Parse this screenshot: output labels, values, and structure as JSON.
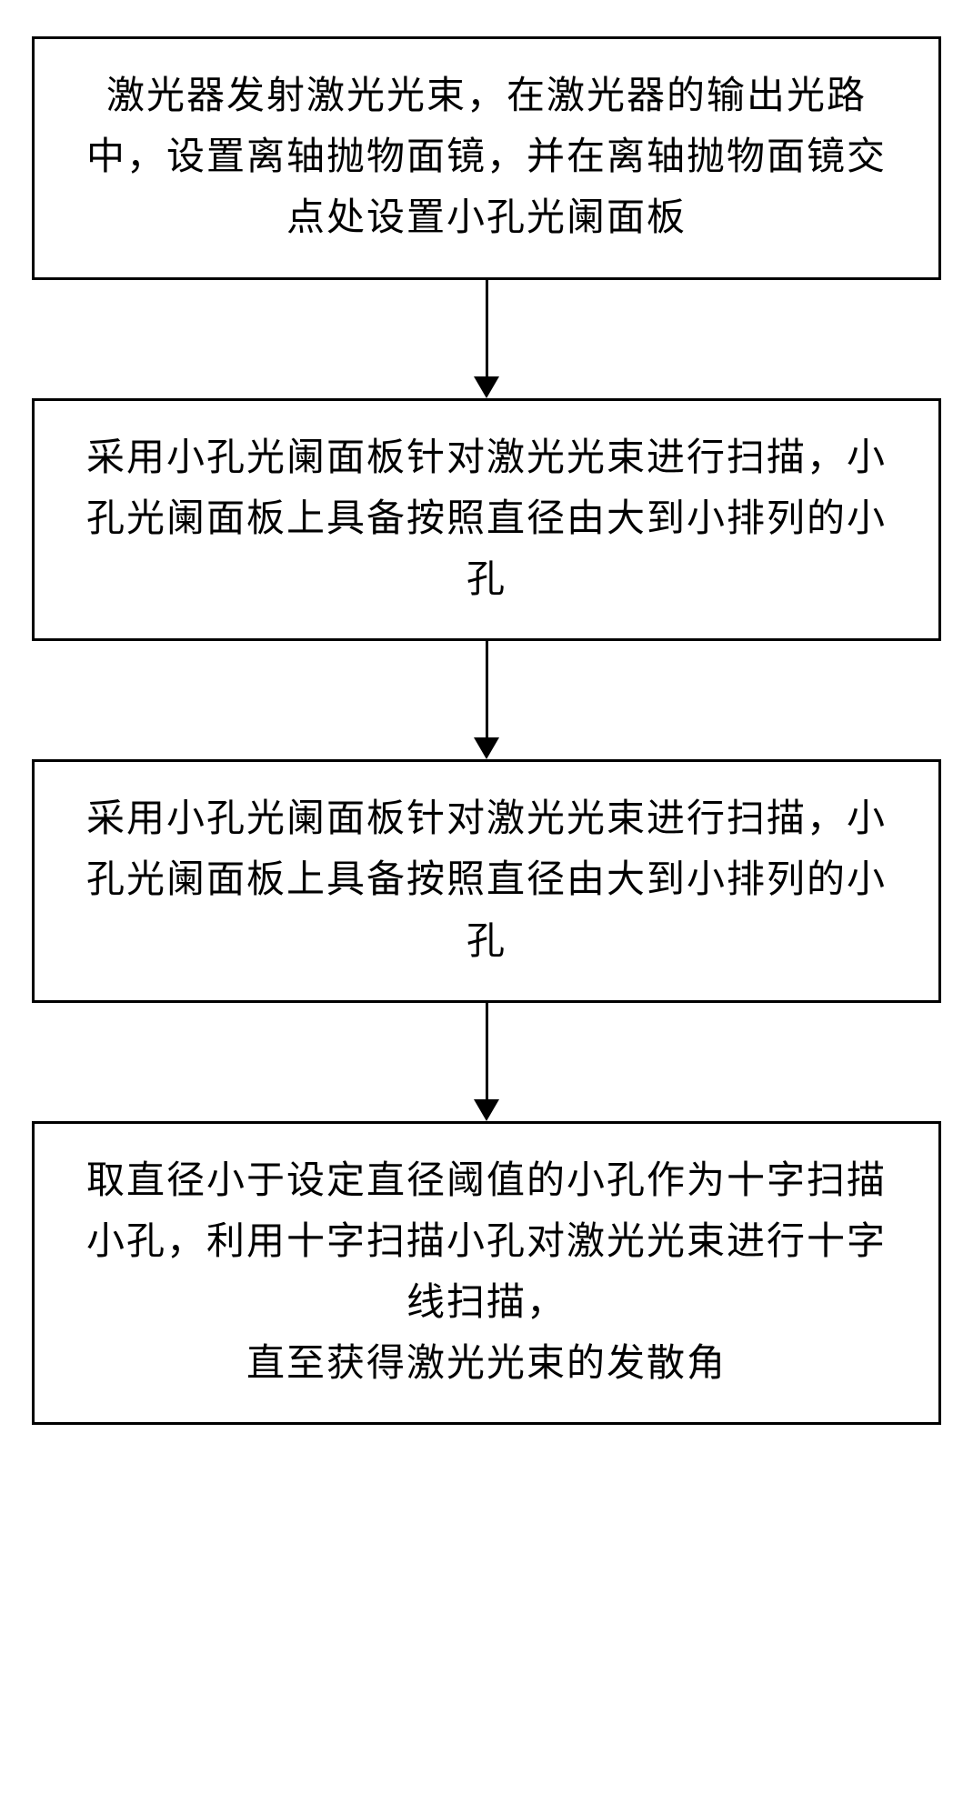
{
  "flowchart": {
    "type": "flowchart",
    "background_color": "#ffffff",
    "box_border_color": "#000000",
    "box_border_width": 3,
    "text_color": "#000000",
    "font_family": "KaiTi",
    "font_size": 42,
    "arrow_color": "#000000",
    "arrow_line_width": 3,
    "arrow_head_width": 28,
    "arrow_head_height": 24,
    "arrow_gap_height": 130,
    "nodes": [
      {
        "id": "step1",
        "text": "激光器发射激光光束，在激光器的输出光路中，设置离轴抛物面镜，并在离轴抛物面镜交点处设置小孔光阑面板"
      },
      {
        "id": "step2",
        "text": "采用小孔光阑面板针对激光光束进行扫描，小孔光阑面板上具备按照直径由大到小排列的小孔"
      },
      {
        "id": "step3",
        "text": "采用小孔光阑面板针对激光光束进行扫描，小孔光阑面板上具备按照直径由大到小排列的小孔"
      },
      {
        "id": "step4",
        "text": "取直径小于设定直径阈值的小孔作为十字扫描小孔，利用十字扫描小孔对激光光束进行十字线扫描，\n直至获得激光光束的发散角"
      }
    ],
    "edges": [
      {
        "from": "step1",
        "to": "step2"
      },
      {
        "from": "step2",
        "to": "step3"
      },
      {
        "from": "step3",
        "to": "step4"
      }
    ]
  }
}
